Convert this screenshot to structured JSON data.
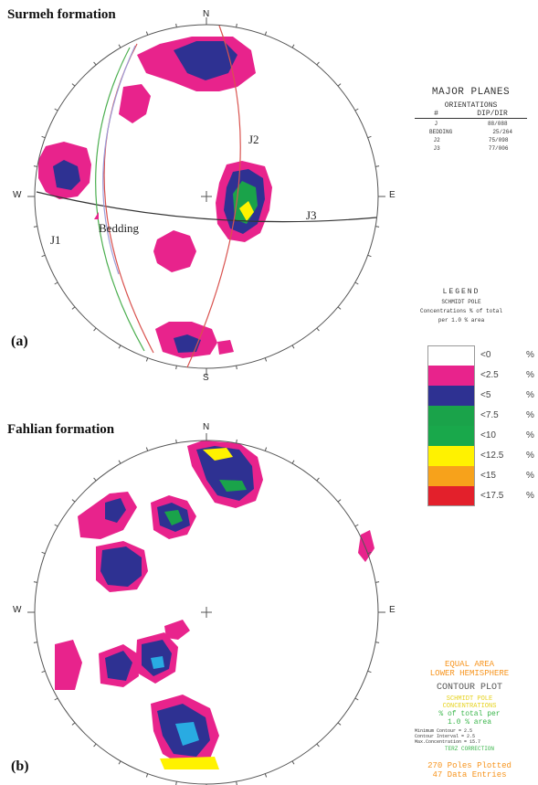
{
  "panel_a": {
    "title": "Surmeh formation",
    "label": "(a)",
    "north": "N",
    "south": "S",
    "east": "E",
    "west": "W",
    "plane_labels": [
      "J1",
      "J2",
      "J3"
    ],
    "bedding_label": "Bedding"
  },
  "major_planes": {
    "title": "MAJOR PLANES",
    "subtitle": "ORIENTATIONS",
    "col_num": "#",
    "col_dip": "DIP/DIR",
    "rows": [
      {
        "name": "J",
        "value": "88/088"
      },
      {
        "name": "BEDDING",
        "value": "25/264"
      },
      {
        "name": "J2",
        "value": "75/098"
      },
      {
        "name": "J3",
        "value": "77/006"
      }
    ]
  },
  "legend": {
    "title": "LEGEND",
    "subtitle": "SCHMIDT POLE",
    "line3": "Concentrations % of total",
    "line4": "per 1.0 % area",
    "entries": [
      {
        "label": "<0",
        "pct": "%",
        "color": "#ffffff"
      },
      {
        "label": "<2.5",
        "pct": "%",
        "color": "#e8238c"
      },
      {
        "label": "<5",
        "pct": "%",
        "color": "#2e3192"
      },
      {
        "label": "<7.5",
        "pct": "%",
        "color": "#1aa34a"
      },
      {
        "label": "<10",
        "pct": "%",
        "color": "#19a84b"
      },
      {
        "label": "<12.5",
        "pct": "%",
        "color": "#fff200"
      },
      {
        "label": "<15",
        "pct": "%",
        "color": "#f7a21b"
      },
      {
        "label": "<17.5",
        "pct": "%",
        "color": "#e3202b"
      }
    ]
  },
  "panel_b": {
    "title": "Fahlian formation",
    "label": "(b)",
    "north": "N",
    "east": "E",
    "west": "W"
  },
  "plot_info": {
    "line1": "EQUAL AREA",
    "line2": "LOWER HEMISPHERE",
    "line3": "CONTOUR PLOT",
    "line4": "SCHMIDT POLE",
    "line5": "CONCENTRATIONS",
    "line6": "% of total per",
    "line7": "1.0 % area",
    "line8": "Minimum Contour = 2.5",
    "line9": "Contour Interval = 2.5",
    "line10": "Max.Concentration = 15.7",
    "line11": "TERZ CORRECTION",
    "line12": "270 Poles Plotted",
    "line13": "47 Data Entries"
  },
  "colors": {
    "pink": "#e8238c",
    "blue": "#2e3192",
    "green": "#1aa34a",
    "yellow": "#fff200",
    "cyan": "#29abe2",
    "red_plane": "#d9534f",
    "green_plane": "#4caf50",
    "orange_text": "#f7941d",
    "yellow_text": "#e6d21c",
    "green_text": "#39b54a"
  }
}
